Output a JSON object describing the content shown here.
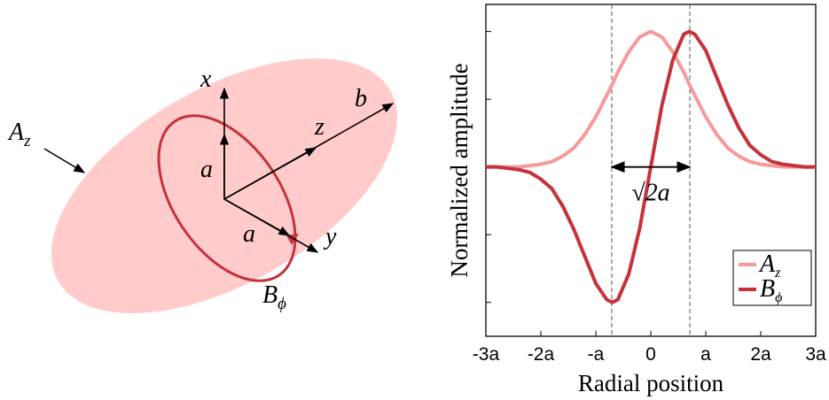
{
  "diagram": {
    "labels": {
      "x": "x",
      "z": "z",
      "b": "b",
      "a_vertical": "a",
      "a_horizontal": "a",
      "y": "y",
      "field_a": {
        "base": "A",
        "sub": "z"
      },
      "field_b": {
        "base": "B",
        "sub": "ϕ"
      }
    }
  },
  "chart_data": {
    "type": "line",
    "xlabel": "Radial position",
    "ylabel": "Normalized amplitude",
    "x": [
      -3,
      -2.8,
      -2.6,
      -2.4,
      -2.2,
      -2,
      -1.8,
      -1.6,
      -1.4,
      -1.2,
      -1,
      -0.8,
      -0.7,
      -0.6,
      -0.4,
      -0.2,
      0,
      0.2,
      0.4,
      0.6,
      0.7,
      0.8,
      1,
      1.2,
      1.4,
      1.6,
      1.8,
      2,
      2.2,
      2.4,
      2.6,
      2.8,
      3
    ],
    "series": [
      {
        "name": "A",
        "subscript": "z",
        "color": "#f7999b",
        "values": [
          0,
          0,
          0,
          0,
          0.01,
          0.02,
          0.04,
          0.08,
          0.14,
          0.24,
          0.37,
          0.53,
          0.61,
          0.7,
          0.85,
          0.96,
          1,
          0.96,
          0.85,
          0.7,
          0.61,
          0.53,
          0.37,
          0.24,
          0.14,
          0.08,
          0.04,
          0.02,
          0.01,
          0,
          0,
          0,
          0
        ]
      },
      {
        "name": "B",
        "subscript": "ϕ",
        "color": "#c7323a",
        "values": [
          0,
          0,
          -0.01,
          -0.02,
          -0.04,
          -0.09,
          -0.16,
          -0.29,
          -0.46,
          -0.66,
          -0.86,
          -0.98,
          -1,
          -0.98,
          -0.79,
          -0.45,
          0,
          0.45,
          0.79,
          0.98,
          1,
          0.98,
          0.86,
          0.66,
          0.46,
          0.29,
          0.16,
          0.09,
          0.04,
          0.02,
          0.01,
          0,
          0
        ]
      }
    ],
    "xlim": [
      -3,
      3
    ],
    "xticks": [
      {
        "value": -3,
        "label": "-3a"
      },
      {
        "value": -2,
        "label": "-2a"
      },
      {
        "value": -1,
        "label": "-a"
      },
      0,
      {
        "value": 1,
        "label": "a"
      },
      {
        "value": 2,
        "label": "2a"
      },
      {
        "value": 3,
        "label": "3a"
      }
    ],
    "ylim": [
      -1.25,
      1.2
    ],
    "yticks": [
      -1,
      -0.5,
      0,
      0.5,
      1
    ],
    "vlines": [
      -0.71,
      0.71
    ],
    "annotation": "√2a",
    "legend": "lower right"
  }
}
